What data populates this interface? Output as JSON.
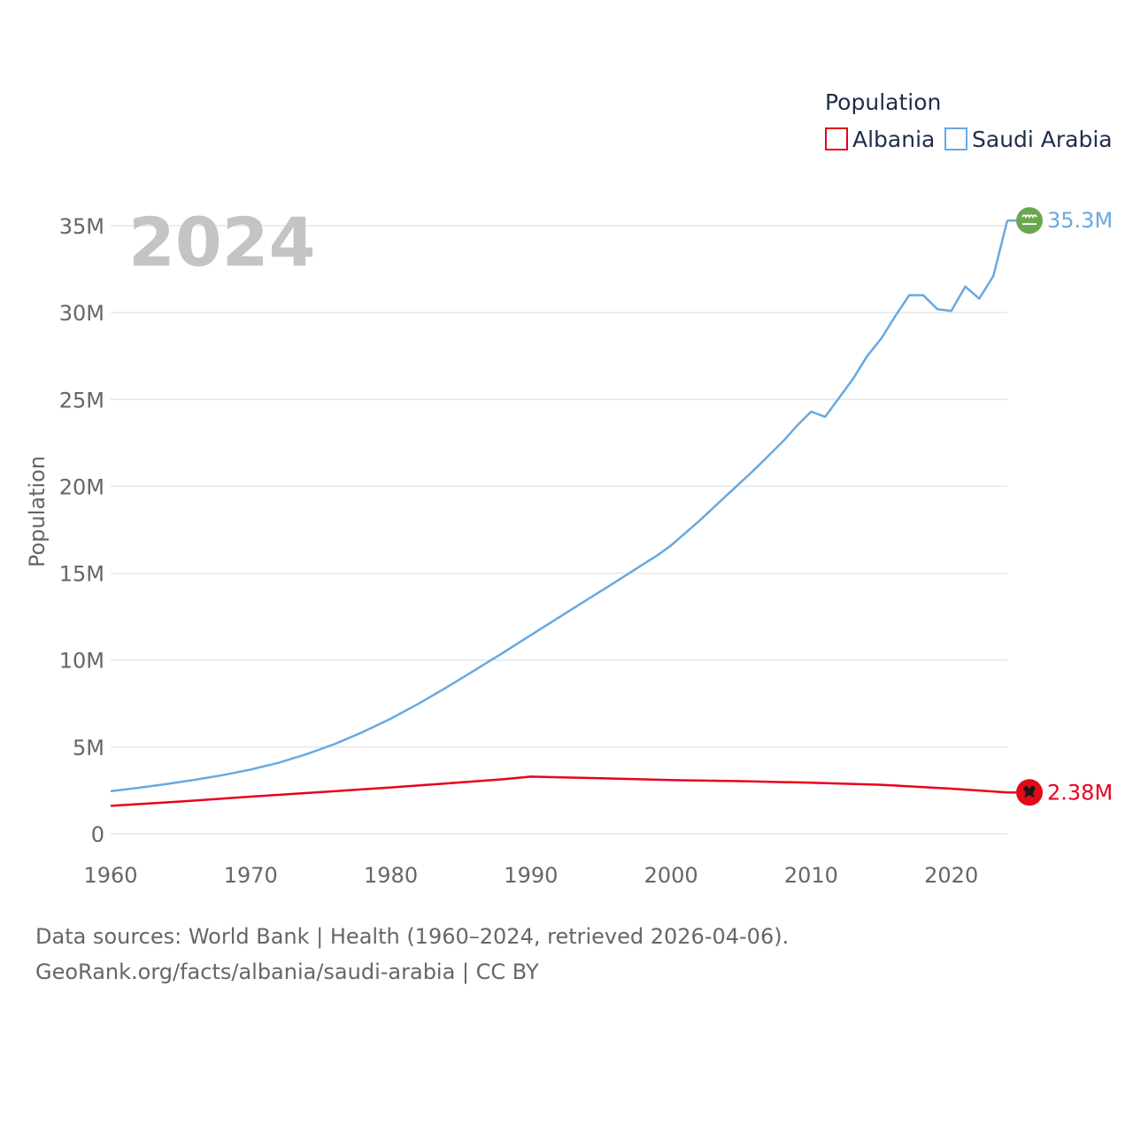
{
  "chart_data": {
    "type": "line",
    "legend_title": "Population",
    "ylabel": "Population",
    "year_label": "2024",
    "xlim": [
      1960,
      2024
    ],
    "ylim": [
      0,
      35000000
    ],
    "x_ticks": [
      1960,
      1970,
      1980,
      1990,
      2000,
      2010,
      2020
    ],
    "x_tick_labels": [
      "1960",
      "1970",
      "1980",
      "1990",
      "2000",
      "2010",
      "2020"
    ],
    "y_ticks": [
      0,
      5000000,
      10000000,
      15000000,
      20000000,
      25000000,
      30000000,
      35000000
    ],
    "y_tick_labels": [
      "0",
      "5M",
      "10M",
      "15M",
      "20M",
      "25M",
      "30M",
      "35M"
    ],
    "series": [
      {
        "name": "Albania",
        "color": "#e8001c",
        "end_label": "2.38M",
        "flag_icon": "albania-flag-icon",
        "x": [
          1960,
          1965,
          1970,
          1975,
          1980,
          1985,
          1988,
          1990,
          1995,
          2000,
          2005,
          2010,
          2011,
          2015,
          2020,
          2024
        ],
        "values": [
          1610000,
          1860000,
          2140000,
          2400000,
          2670000,
          2960000,
          3140000,
          3290000,
          3200000,
          3090000,
          3030000,
          2940000,
          2920000,
          2820000,
          2600000,
          2380000
        ]
      },
      {
        "name": "Saudi Arabia",
        "color": "#67a9e1",
        "end_label": "35.3M",
        "flag_icon": "saudi-arabia-flag-icon",
        "x": [
          1960,
          1962,
          1964,
          1966,
          1968,
          1970,
          1972,
          1974,
          1976,
          1978,
          1980,
          1982,
          1984,
          1986,
          1988,
          1990,
          1992,
          1994,
          1996,
          1998,
          1999,
          2000,
          2002,
          2004,
          2006,
          2008,
          2009,
          2010,
          2011,
          2012,
          2013,
          2014,
          2015,
          2016,
          2017,
          2018,
          2019,
          2020,
          2021,
          2022,
          2023,
          2024
        ],
        "values": [
          2450000,
          2650000,
          2870000,
          3110000,
          3380000,
          3700000,
          4090000,
          4590000,
          5170000,
          5860000,
          6630000,
          7500000,
          8440000,
          9420000,
          10420000,
          11440000,
          12460000,
          13470000,
          14480000,
          15510000,
          16020000,
          16600000,
          18000000,
          19500000,
          21000000,
          22600000,
          23500000,
          24300000,
          24000000,
          25100000,
          26200000,
          27500000,
          28500000,
          29800000,
          31000000,
          31000000,
          30200000,
          30100000,
          31500000,
          30800000,
          32100000,
          35300000
        ]
      }
    ]
  },
  "footer": {
    "source": "Data sources: World Bank | Health (1960–2024, retrieved 2026-04-06).",
    "credit": "GeoRank.org/facts/albania/saudi-arabia | CC BY"
  }
}
